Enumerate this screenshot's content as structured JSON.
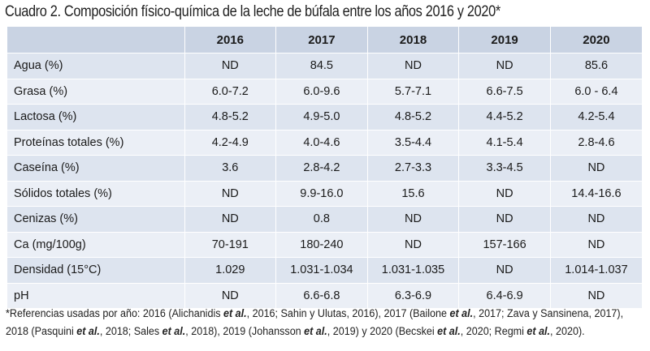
{
  "caption": "Cuadro 2. Composición físico-química de la leche de búfala entre los años 2016 y 2020*",
  "table": {
    "headers": [
      "",
      "2016",
      "2017",
      "2018",
      "2019",
      "2020"
    ],
    "rows": [
      {
        "label": "Agua (%)",
        "cells": [
          "ND",
          "84.5",
          "ND",
          "ND",
          "85.6"
        ]
      },
      {
        "label": "Grasa (%)",
        "cells": [
          "6.0-7.2",
          "6.0-9.6",
          "5.7-7.1",
          "6.6-7.5",
          "6.0 - 6.4"
        ]
      },
      {
        "label": "Lactosa (%)",
        "cells": [
          "4.8-5.2",
          "4.9-5.0",
          "4.8-5.2",
          "4.4-5.2",
          "4.2-5.4"
        ]
      },
      {
        "label": "Proteínas totales (%)",
        "cells": [
          "4.2-4.9",
          "4.0-4.6",
          "3.5-4.4",
          "4.1-5.4",
          "2.8-4.6"
        ]
      },
      {
        "label": "Caseína (%)",
        "cells": [
          "3.6",
          "2.8-4.2",
          "2.7-3.3",
          "3.3-4.5",
          "ND"
        ]
      },
      {
        "label": "Sólidos totales (%)",
        "cells": [
          "ND",
          "9.9-16.0",
          "15.6",
          "ND",
          "14.4-16.6"
        ]
      },
      {
        "label": "Cenizas (%)",
        "cells": [
          "ND",
          "0.8",
          "ND",
          "ND",
          "ND"
        ]
      },
      {
        "label": "Ca (mg/100g)",
        "cells": [
          "70-191",
          "180-240",
          "ND",
          "157-166",
          "ND"
        ]
      },
      {
        "label": "Densidad (15°C)",
        "cells": [
          "1.029",
          "1.031-1.034",
          "1.031-1.035",
          "ND",
          "1.014-1.037"
        ]
      },
      {
        "label": "pH",
        "cells": [
          "ND",
          "6.6-6.8",
          "6.3-6.9",
          "6.4-6.9",
          "ND"
        ]
      }
    ]
  },
  "footnote": {
    "line1": [
      {
        "t": "*Referencias usadas por año: 2016 (Alichanidis "
      },
      {
        "t": "et al.",
        "i": true
      },
      {
        "t": ", 2016; Sahin y Ulutas, 2016), 2017 (Bailone "
      },
      {
        "t": "et al.",
        "i": true
      },
      {
        "t": ", 2017; Zava y Sansinena, 2017),"
      }
    ],
    "line2": [
      {
        "t": "2018 (Pasquini "
      },
      {
        "t": "et al.",
        "i": true
      },
      {
        "t": ", 2018; Sales "
      },
      {
        "t": "et al.",
        "i": true
      },
      {
        "t": ", 2018), 2019 (Johansson "
      },
      {
        "t": "et al.",
        "i": true
      },
      {
        "t": ", 2019) y 2020 (Becskei "
      },
      {
        "t": "et al.",
        "i": true
      },
      {
        "t": ", 2020; Regmi "
      },
      {
        "t": "et al.",
        "i": true
      },
      {
        "t": ", 2020)."
      }
    ]
  }
}
